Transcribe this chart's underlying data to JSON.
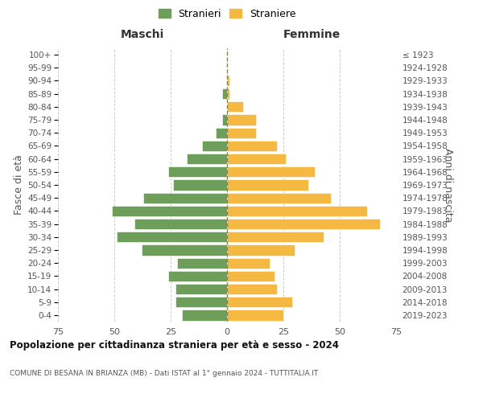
{
  "age_groups": [
    "0-4",
    "5-9",
    "10-14",
    "15-19",
    "20-24",
    "25-29",
    "30-34",
    "35-39",
    "40-44",
    "45-49",
    "50-54",
    "55-59",
    "60-64",
    "65-69",
    "70-74",
    "75-79",
    "80-84",
    "85-89",
    "90-94",
    "95-99",
    "100+"
  ],
  "birth_years": [
    "2019-2023",
    "2014-2018",
    "2009-2013",
    "2004-2008",
    "1999-2003",
    "1994-1998",
    "1989-1993",
    "1984-1988",
    "1979-1983",
    "1974-1978",
    "1969-1973",
    "1964-1968",
    "1959-1963",
    "1954-1958",
    "1949-1953",
    "1944-1948",
    "1939-1943",
    "1934-1938",
    "1929-1933",
    "1924-1928",
    "≤ 1923"
  ],
  "males": [
    20,
    23,
    23,
    26,
    22,
    38,
    49,
    41,
    51,
    37,
    24,
    26,
    18,
    11,
    5,
    2,
    0,
    2,
    0,
    0,
    0
  ],
  "females": [
    25,
    29,
    22,
    21,
    19,
    30,
    43,
    68,
    62,
    46,
    36,
    39,
    26,
    22,
    13,
    13,
    7,
    1,
    1,
    0,
    0
  ],
  "color_male": "#6d9e5a",
  "color_female": "#f5b942",
  "title": "Popolazione per cittadinanza straniera per età e sesso - 2024",
  "subtitle": "COMUNE DI BESANA IN BRIANZA (MB) - Dati ISTAT al 1° gennaio 2024 - TUTTITALIA.IT",
  "header_left": "Maschi",
  "header_right": "Femmine",
  "ylabel_left": "Fasce di età",
  "ylabel_right": "Anni di nascita",
  "legend_male": "Stranieri",
  "legend_female": "Straniere",
  "xlim": 75,
  "background_color": "#ffffff",
  "grid_color": "#cccccc"
}
